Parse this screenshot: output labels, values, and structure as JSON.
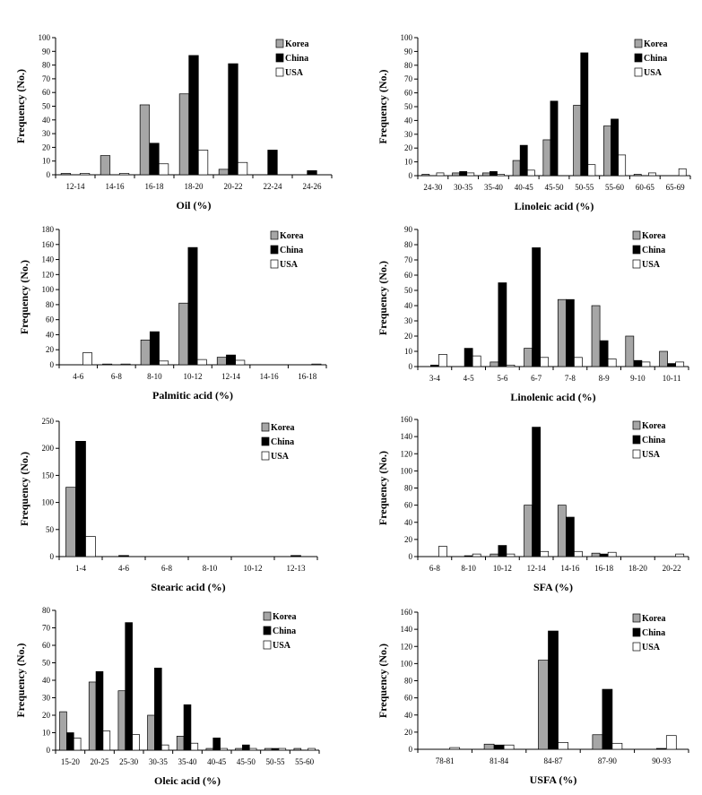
{
  "legend": [
    "Korea",
    "China",
    "USA"
  ],
  "series_colors": {
    "Korea": "#a6a6a6",
    "China": "#000000",
    "USA": "#ffffff"
  },
  "chart_data": [
    {
      "type": "bar",
      "xlabel": "Oil (%)",
      "ylabel": "Frequency (No.)",
      "ylim": [
        0,
        100
      ],
      "yticks": [
        0,
        10,
        20,
        30,
        40,
        50,
        60,
        70,
        80,
        90,
        100
      ],
      "categories": [
        "12-14",
        "14-16",
        "16-18",
        "18-20",
        "20-22",
        "22-24",
        "24-26"
      ],
      "series": [
        {
          "name": "Korea",
          "values": [
            1,
            14,
            51,
            59,
            4,
            0,
            0
          ]
        },
        {
          "name": "China",
          "values": [
            0,
            0,
            23,
            87,
            81,
            18,
            3
          ]
        },
        {
          "name": "USA",
          "values": [
            1,
            1,
            8,
            18,
            9,
            0,
            0
          ]
        }
      ],
      "legend_position": "top-right"
    },
    {
      "type": "bar",
      "xlabel": "Linoleic acid (%)",
      "ylabel": "Frequency (No.)",
      "ylim": [
        0,
        100
      ],
      "yticks": [
        0,
        10,
        20,
        30,
        40,
        50,
        60,
        70,
        80,
        90,
        100
      ],
      "categories": [
        "24-30",
        "30-35",
        "35-40",
        "40-45",
        "45-50",
        "50-55",
        "55-60",
        "60-65",
        "65-69"
      ],
      "series": [
        {
          "name": "Korea",
          "values": [
            1,
            2,
            2,
            11,
            26,
            51,
            36,
            1,
            0
          ]
        },
        {
          "name": "China",
          "values": [
            0,
            3,
            3,
            22,
            54,
            89,
            41,
            0,
            0
          ]
        },
        {
          "name": "USA",
          "values": [
            2,
            2,
            1,
            4,
            0,
            8,
            15,
            2,
            5
          ]
        }
      ],
      "legend_position": "top-right"
    },
    {
      "type": "bar",
      "xlabel": "Palmitic acid (%)",
      "ylabel": "Frequency (No.)",
      "ylim": [
        0,
        180
      ],
      "yticks": [
        0,
        20,
        40,
        60,
        80,
        100,
        120,
        140,
        160,
        180
      ],
      "categories": [
        "4-6",
        "6-8",
        "8-10",
        "10-12",
        "12-14",
        "14-16",
        "16-18"
      ],
      "series": [
        {
          "name": "Korea",
          "values": [
            0,
            1,
            33,
            82,
            10,
            0,
            0
          ]
        },
        {
          "name": "China",
          "values": [
            0,
            0,
            44,
            156,
            13,
            0,
            0
          ]
        },
        {
          "name": "USA",
          "values": [
            16,
            1,
            5,
            7,
            6,
            0,
            1
          ]
        }
      ],
      "legend_position": "top-right"
    },
    {
      "type": "bar",
      "xlabel": "Linolenic acid (%)",
      "ylabel": "Frequency (No.)",
      "ylim": [
        0,
        90
      ],
      "yticks": [
        0,
        10,
        20,
        30,
        40,
        50,
        60,
        70,
        80,
        90
      ],
      "categories": [
        "3-4",
        "4-5",
        "5-6",
        "6-7",
        "7-8",
        "8-9",
        "9-10",
        "10-11"
      ],
      "series": [
        {
          "name": "Korea",
          "values": [
            0,
            0,
            3,
            12,
            44,
            40,
            20,
            10
          ]
        },
        {
          "name": "China",
          "values": [
            1,
            12,
            55,
            78,
            44,
            17,
            4,
            2
          ]
        },
        {
          "name": "USA",
          "values": [
            8,
            7,
            1,
            6,
            6,
            5,
            3,
            3
          ]
        }
      ],
      "legend_position": "top-right"
    },
    {
      "type": "bar",
      "xlabel": "Stearic acid (%)",
      "ylabel": "Frequency (No.)",
      "ylim": [
        0,
        250
      ],
      "yticks": [
        0,
        50,
        100,
        150,
        200,
        250
      ],
      "categories": [
        "1-4",
        "4-6",
        "6-8",
        "8-10",
        "10-12",
        "12-13"
      ],
      "series": [
        {
          "name": "Korea",
          "values": [
            128,
            0,
            0,
            0,
            0,
            0
          ]
        },
        {
          "name": "China",
          "values": [
            213,
            2,
            0,
            0,
            0,
            2
          ]
        },
        {
          "name": "USA",
          "values": [
            37,
            0,
            0,
            0,
            0,
            0
          ]
        }
      ],
      "legend_position": "top-right"
    },
    {
      "type": "bar",
      "xlabel": "SFA (%)",
      "ylabel": "Frequency (No.)",
      "ylim": [
        0,
        160
      ],
      "yticks": [
        0,
        20,
        40,
        60,
        80,
        100,
        120,
        140,
        160
      ],
      "categories": [
        "6-8",
        "8-10",
        "10-12",
        "12-14",
        "14-16",
        "16-18",
        "18-20",
        "20-22"
      ],
      "series": [
        {
          "name": "Korea",
          "values": [
            0,
            0,
            3,
            60,
            60,
            4,
            0,
            0
          ]
        },
        {
          "name": "China",
          "values": [
            0,
            1,
            13,
            151,
            46,
            3,
            0,
            0
          ]
        },
        {
          "name": "USA",
          "values": [
            12,
            3,
            3,
            6,
            6,
            5,
            0,
            3
          ]
        }
      ],
      "legend_position": "top-right"
    },
    {
      "type": "bar",
      "xlabel": "Oleic acid (%)",
      "ylabel": "Frequency (No.)",
      "ylim": [
        0,
        80
      ],
      "yticks": [
        0,
        10,
        20,
        30,
        40,
        50,
        60,
        70,
        80
      ],
      "categories": [
        "15-20",
        "20-25",
        "25-30",
        "30-35",
        "35-40",
        "40-45",
        "45-50",
        "50-55",
        "55-60"
      ],
      "series": [
        {
          "name": "Korea",
          "values": [
            22,
            39,
            34,
            20,
            8,
            1,
            1,
            1,
            1
          ]
        },
        {
          "name": "China",
          "values": [
            10,
            45,
            73,
            47,
            26,
            7,
            3,
            1,
            0
          ]
        },
        {
          "name": "USA",
          "values": [
            7,
            11,
            9,
            3,
            4,
            1,
            1,
            1,
            1
          ]
        }
      ],
      "legend_position": "top-right"
    },
    {
      "type": "bar",
      "xlabel": "USFA (%)",
      "ylabel": "Frequency (No.)",
      "ylim": [
        0,
        160
      ],
      "yticks": [
        0,
        20,
        40,
        60,
        80,
        100,
        120,
        140,
        160
      ],
      "categories": [
        "78-81",
        "81-84",
        "84-87",
        "87-90",
        "90-93"
      ],
      "series": [
        {
          "name": "Korea",
          "values": [
            0,
            6,
            104,
            17,
            0
          ]
        },
        {
          "name": "China",
          "values": [
            0,
            5,
            138,
            70,
            1
          ]
        },
        {
          "name": "USA",
          "values": [
            2,
            5,
            8,
            7,
            16
          ]
        }
      ],
      "legend_position": "top-right"
    }
  ]
}
